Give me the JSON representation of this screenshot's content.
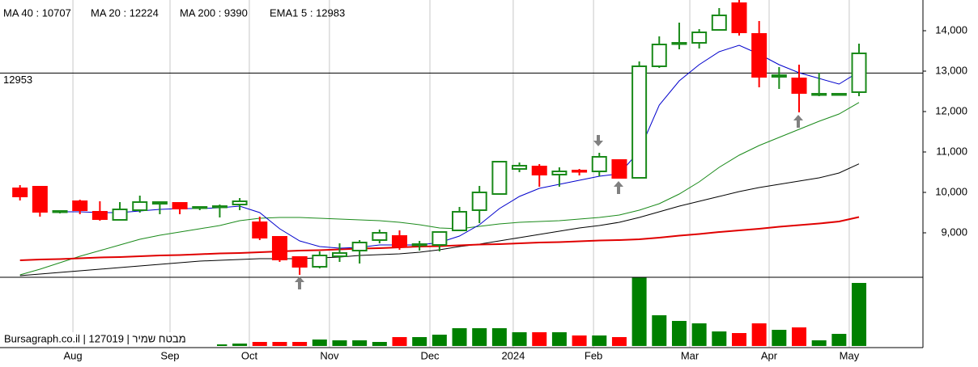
{
  "chart_data": {
    "type": "candlestick",
    "legend": [
      {
        "text": "MA 40 : 10707",
        "color": "#000000"
      },
      {
        "text": "MA 20 : 12224",
        "color": "#1a8a1a"
      },
      {
        "text": "MA 200 : 9390",
        "color": "#e00000"
      },
      {
        "text": "EMA1 5 : 12983",
        "color": "#0000cc"
      }
    ],
    "watermark": "Bursagraph.co.il | 127019 | מבטח שמיר",
    "price_line": 12953,
    "xlim": [
      -1,
      45.2
    ],
    "xticks": [
      {
        "value": 2.65,
        "label": "Aug"
      },
      {
        "value": 7.51,
        "label": "Sep"
      },
      {
        "value": 11.48,
        "label": "Oct"
      },
      {
        "value": 15.49,
        "label": "Nov"
      },
      {
        "value": 20.52,
        "label": "Dec"
      },
      {
        "value": 24.69,
        "label": "2024"
      },
      {
        "value": 28.71,
        "label": "Feb"
      },
      {
        "value": 33.53,
        "label": "Mar"
      },
      {
        "value": 37.5,
        "label": "Apr"
      },
      {
        "value": 41.51,
        "label": "May"
      }
    ],
    "ylim": [
      7900,
      14760
    ],
    "yticks": [
      {
        "value": 9000,
        "label": "9,000"
      },
      {
        "value": 10000,
        "label": "10,000"
      },
      {
        "value": 11000,
        "label": "11,000"
      },
      {
        "value": 12000,
        "label": "12,000"
      },
      {
        "value": 13000,
        "label": "13,000"
      },
      {
        "value": 14000,
        "label": "14,000"
      }
    ],
    "up_color": "#1a8a1a",
    "down_color": "#ff0000",
    "ohlc": {
      "open": [
        10100,
        10140,
        9520,
        9780,
        9520,
        9320,
        9560,
        9720,
        9740,
        9620,
        9640,
        9700,
        9260,
        8900,
        8400,
        8160,
        8420,
        8560,
        8820,
        8920,
        8700,
        8700,
        9060,
        9560,
        9960,
        10580,
        10640,
        10440,
        10540,
        10520,
        10800,
        10360,
        13120,
        13680,
        13700,
        14020,
        14680,
        13920,
        12860,
        12820,
        12420,
        12420,
        12480
      ],
      "high": [
        10180,
        10140,
        9560,
        9820,
        9780,
        9760,
        9920,
        9780,
        9760,
        9660,
        9700,
        9860,
        9400,
        8920,
        8420,
        8540,
        8740,
        8820,
        9080,
        9060,
        8800,
        9040,
        9640,
        10160,
        10780,
        10740,
        10700,
        10620,
        10580,
        10980,
        10820,
        13240,
        13860,
        14200,
        14040,
        14560,
        14760,
        14240,
        13100,
        13160,
        12960,
        12460,
        13680
      ],
      "low": [
        9800,
        9400,
        9480,
        9460,
        9300,
        9300,
        9500,
        9460,
        9460,
        9560,
        9380,
        9560,
        8820,
        8280,
        7960,
        8120,
        8280,
        8240,
        8740,
        8580,
        8560,
        8540,
        9040,
        9240,
        9940,
        10500,
        10140,
        10140,
        10420,
        10400,
        10340,
        10360,
        13080,
        13540,
        13560,
        14000,
        13880,
        12600,
        12560,
        11980,
        12380,
        12400,
        12380
      ],
      "close": [
        9900,
        9520,
        9540,
        9560,
        9340,
        9580,
        9760,
        9760,
        9600,
        9640,
        9660,
        9780,
        8880,
        8340,
        8160,
        8440,
        8500,
        8760,
        9000,
        8660,
        8720,
        9020,
        9520,
        10000,
        10760,
        10660,
        10440,
        10520,
        10520,
        10880,
        10360,
        13120,
        13660,
        13700,
        13960,
        14380,
        13960,
        12860,
        12900,
        12460,
        12440,
        12440,
        13440
      ]
    },
    "series": [
      {
        "name": "MA 40",
        "color": "#000000",
        "width": 1,
        "values": [
          7940,
          7980,
          8020,
          8060,
          8100,
          8140,
          8180,
          8220,
          8260,
          8300,
          8320,
          8340,
          8360,
          8360,
          8360,
          8380,
          8400,
          8440,
          8460,
          8480,
          8520,
          8580,
          8660,
          8720,
          8800,
          8880,
          8960,
          9040,
          9120,
          9180,
          9260,
          9380,
          9520,
          9660,
          9780,
          9900,
          10020,
          10120,
          10200,
          10280,
          10360,
          10480,
          10707
        ]
      },
      {
        "name": "MA 20",
        "color": "#1a8a1a",
        "width": 1,
        "values": [
          7960,
          8100,
          8260,
          8420,
          8560,
          8700,
          8840,
          8940,
          9020,
          9100,
          9180,
          9300,
          9360,
          9380,
          9380,
          9360,
          9340,
          9320,
          9300,
          9260,
          9200,
          9120,
          9100,
          9160,
          9220,
          9260,
          9280,
          9300,
          9340,
          9380,
          9440,
          9560,
          9720,
          9960,
          10260,
          10620,
          10920,
          11160,
          11360,
          11560,
          11760,
          11940,
          12224
        ]
      },
      {
        "name": "MA 200",
        "color": "#e00000",
        "width": 2,
        "values": [
          8320,
          8340,
          8350,
          8370,
          8390,
          8400,
          8420,
          8440,
          8450,
          8470,
          8490,
          8500,
          8520,
          8540,
          8560,
          8570,
          8590,
          8610,
          8620,
          8640,
          8660,
          8670,
          8690,
          8710,
          8720,
          8740,
          8760,
          8770,
          8790,
          8810,
          8820,
          8840,
          8880,
          8930,
          8970,
          9020,
          9060,
          9100,
          9150,
          9190,
          9230,
          9280,
          9390
        ]
      },
      {
        "name": "EMA1 5",
        "color": "#0000cc",
        "width": 1,
        "values": [
          null,
          null,
          9520,
          9520,
          9500,
          9500,
          9540,
          9580,
          9600,
          9600,
          9620,
          9660,
          9500,
          9100,
          8800,
          8660,
          8620,
          8640,
          8700,
          8700,
          8700,
          8760,
          8920,
          9200,
          9600,
          9900,
          10100,
          10200,
          10300,
          10400,
          10460,
          11020,
          12160,
          12760,
          13160,
          13480,
          13640,
          13420,
          13160,
          12960,
          12820,
          12680,
          12983
        ]
      }
    ],
    "volume": {
      "ylim": [
        0,
        85
      ],
      "values": [
        2,
        2,
        2,
        2,
        2,
        2,
        2,
        2,
        2,
        2,
        2,
        3,
        5,
        5,
        5,
        8,
        7,
        7,
        5,
        11,
        11,
        14,
        22,
        22,
        22,
        17,
        17,
        17,
        13,
        13,
        11,
        85,
        38,
        31,
        28,
        18,
        16,
        28,
        20,
        23,
        7,
        15,
        78
      ]
    }
  }
}
